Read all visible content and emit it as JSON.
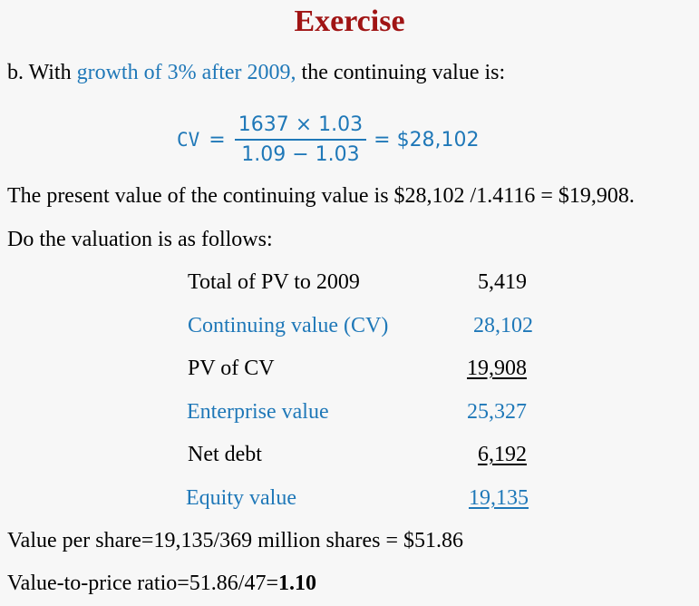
{
  "title": "Exercise",
  "intro": {
    "prefix": "b. With ",
    "highlight": "growth of 3% after 2009,",
    "suffix": " the continuing value is:"
  },
  "formula": {
    "lhs": "CV",
    "equals": "=",
    "numerator": "1637 × 1.03",
    "denominator": "1.09 − 1.03",
    "result": "= $28,102"
  },
  "present_value_text": "The present value of the continuing value is $28,102 /1.4116 = $19,908.",
  "valuation_intro": "Do the valuation is as follows:",
  "valuation_table": [
    {
      "label": "Total of PV to 2009",
      "value": "5,419"
    },
    {
      "label": "Continuing value (CV)",
      "value": "28,102"
    },
    {
      "label": "PV of CV",
      "value": "19,908"
    },
    {
      "label": "Enterprise value",
      "value": "25,327"
    },
    {
      "label": "Net debt",
      "value": "6,192"
    },
    {
      "label": "Equity value",
      "value": "19,135"
    }
  ],
  "per_share_text": "Value per share=19,135/369 million shares = $51.86",
  "ratio": {
    "prefix": "Value-to-price ratio=51.86/47=",
    "value": "1.10"
  },
  "colors": {
    "title": "#a01414",
    "accent_blue": "#1f78b8",
    "background": "#f7f7f7"
  }
}
